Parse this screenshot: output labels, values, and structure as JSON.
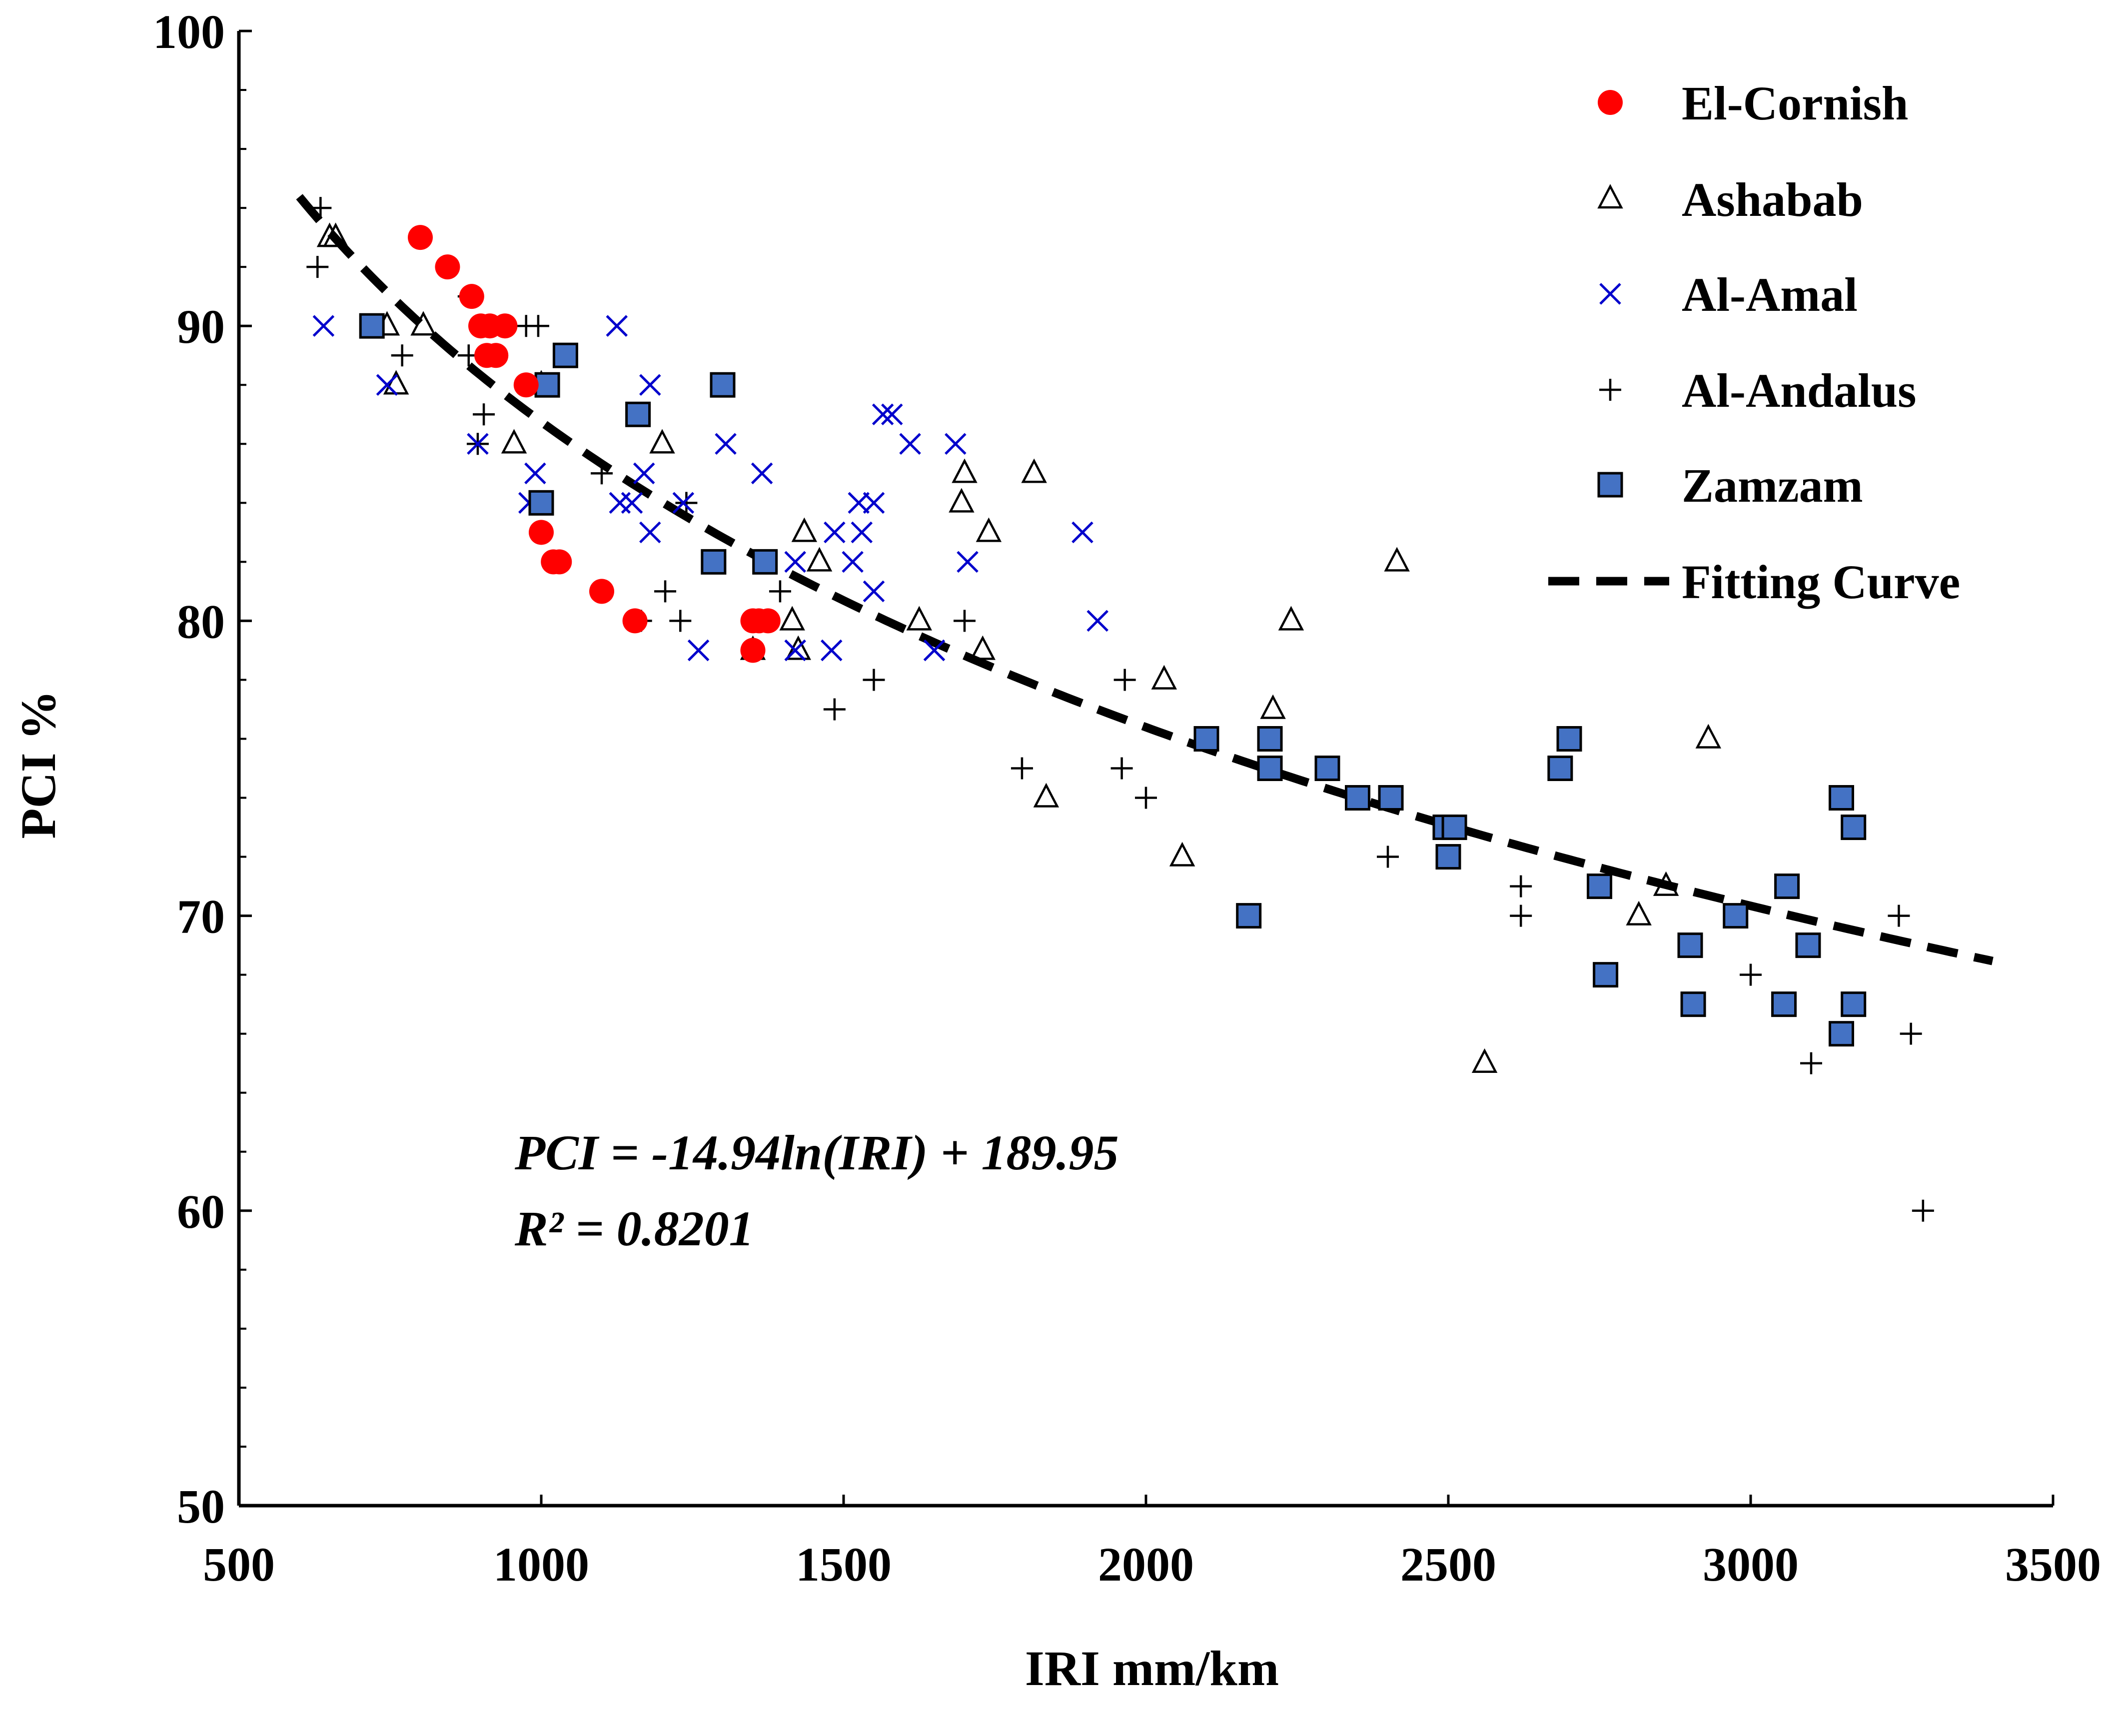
{
  "chart_data": {
    "type": "scatter",
    "title": "",
    "xlabel": "IRI mm/km",
    "ylabel": "PCI %",
    "xlim": [
      500,
      3500
    ],
    "ylim": [
      50,
      100
    ],
    "x_ticks": [
      500,
      1000,
      1500,
      2000,
      2500,
      3000,
      3500
    ],
    "y_ticks": [
      50,
      60,
      70,
      80,
      90,
      100
    ],
    "grid": false,
    "legend_position": "top-right",
    "colors": {
      "el_cornish": "#ff0000",
      "al_amal": "#0000cc",
      "zamzam": "#4472c4",
      "black": "#000000"
    },
    "equation": {
      "line1": "PCI = -14.94ln(IRI) + 189.95",
      "line2": "R² = 0.8201"
    },
    "series": [
      {
        "name": "El-Cornish",
        "marker": "circle",
        "points": [
          [
            800,
            93
          ],
          [
            845,
            92
          ],
          [
            885,
            91
          ],
          [
            900,
            90
          ],
          [
            915,
            90
          ],
          [
            940,
            90
          ],
          [
            910,
            89
          ],
          [
            925,
            89
          ],
          [
            975,
            88
          ],
          [
            1000,
            83
          ],
          [
            1030,
            82
          ],
          [
            1020,
            82
          ],
          [
            1100,
            81
          ],
          [
            1155,
            80
          ],
          [
            1350,
            80
          ],
          [
            1360,
            80
          ],
          [
            1375,
            80
          ],
          [
            1350,
            79
          ]
        ]
      },
      {
        "name": "Ashabab",
        "marker": "triangle",
        "points": [
          [
            660,
            93
          ],
          [
            650,
            93
          ],
          [
            745,
            90
          ],
          [
            805,
            90
          ],
          [
            760,
            88
          ],
          [
            1000,
            88
          ],
          [
            955,
            86
          ],
          [
            1200,
            86
          ],
          [
            1700,
            85
          ],
          [
            1815,
            85
          ],
          [
            1695,
            84
          ],
          [
            1435,
            83
          ],
          [
            1740,
            83
          ],
          [
            1460,
            82
          ],
          [
            2415,
            82
          ],
          [
            1625,
            80
          ],
          [
            1415,
            80
          ],
          [
            2240,
            80
          ],
          [
            1350,
            79
          ],
          [
            1425,
            79
          ],
          [
            1730,
            79
          ],
          [
            2030,
            78
          ],
          [
            2210,
            77
          ],
          [
            2930,
            76
          ],
          [
            1835,
            74
          ],
          [
            2060,
            72
          ],
          [
            2860,
            71
          ],
          [
            2815,
            70
          ],
          [
            2560,
            65
          ]
        ]
      },
      {
        "name": "Al-Amal",
        "marker": "x",
        "points": [
          [
            640,
            90
          ],
          [
            1125,
            90
          ],
          [
            745,
            88
          ],
          [
            1180,
            88
          ],
          [
            1565,
            87
          ],
          [
            1580,
            87
          ],
          [
            895,
            86
          ],
          [
            1305,
            86
          ],
          [
            1610,
            86
          ],
          [
            1685,
            86
          ],
          [
            990,
            85
          ],
          [
            1170,
            85
          ],
          [
            1365,
            85
          ],
          [
            980,
            84
          ],
          [
            1130,
            84
          ],
          [
            1150,
            84
          ],
          [
            1235,
            84
          ],
          [
            1525,
            84
          ],
          [
            1550,
            84
          ],
          [
            1180,
            83
          ],
          [
            1485,
            83
          ],
          [
            1530,
            83
          ],
          [
            1895,
            83
          ],
          [
            1420,
            82
          ],
          [
            1515,
            82
          ],
          [
            1705,
            82
          ],
          [
            1550,
            81
          ],
          [
            1920,
            80
          ],
          [
            1260,
            79
          ],
          [
            1420,
            79
          ],
          [
            1480,
            79
          ],
          [
            1650,
            79
          ]
        ]
      },
      {
        "name": "Al-Andalus",
        "marker": "plus",
        "points": [
          [
            635,
            94
          ],
          [
            630,
            92
          ],
          [
            800,
            93
          ],
          [
            880,
            91
          ],
          [
            975,
            90
          ],
          [
            995,
            90
          ],
          [
            770,
            89
          ],
          [
            880,
            89
          ],
          [
            915,
            89
          ],
          [
            905,
            87
          ],
          [
            895,
            86
          ],
          [
            1100,
            85
          ],
          [
            1240,
            84
          ],
          [
            1395,
            81
          ],
          [
            1205,
            81
          ],
          [
            1165,
            80
          ],
          [
            1230,
            80
          ],
          [
            1700,
            80
          ],
          [
            1550,
            78
          ],
          [
            1965,
            78
          ],
          [
            1485,
            77
          ],
          [
            1795,
            75
          ],
          [
            1960,
            75
          ],
          [
            2000,
            74
          ],
          [
            2400,
            72
          ],
          [
            2620,
            71
          ],
          [
            2620,
            70
          ],
          [
            3245,
            70
          ],
          [
            3000,
            68
          ],
          [
            3265,
            66
          ],
          [
            3100,
            65
          ],
          [
            3285,
            60
          ]
        ]
      },
      {
        "name": "Zamzam",
        "marker": "square",
        "points": [
          [
            720,
            90
          ],
          [
            1040,
            89
          ],
          [
            1010,
            88
          ],
          [
            1300,
            88
          ],
          [
            1160,
            87
          ],
          [
            1000,
            84
          ],
          [
            1285,
            82
          ],
          [
            1370,
            82
          ],
          [
            2100,
            76
          ],
          [
            2205,
            76
          ],
          [
            2700,
            76
          ],
          [
            2205,
            75
          ],
          [
            2300,
            75
          ],
          [
            2685,
            75
          ],
          [
            2350,
            74
          ],
          [
            2405,
            74
          ],
          [
            3150,
            74
          ],
          [
            2495,
            73
          ],
          [
            2510,
            73
          ],
          [
            3170,
            73
          ],
          [
            2500,
            72
          ],
          [
            2750,
            71
          ],
          [
            3060,
            71
          ],
          [
            2170,
            70
          ],
          [
            2975,
            70
          ],
          [
            2900,
            69
          ],
          [
            3095,
            69
          ],
          [
            2760,
            68
          ],
          [
            2905,
            67
          ],
          [
            3055,
            67
          ],
          [
            3170,
            67
          ],
          [
            3150,
            66
          ]
        ]
      },
      {
        "name": "Fitting Curve",
        "marker": "dashed-line",
        "equation": "PCI = -14.94ln(IRI) + 189.95",
        "x_range": [
          600,
          3400
        ]
      }
    ]
  }
}
